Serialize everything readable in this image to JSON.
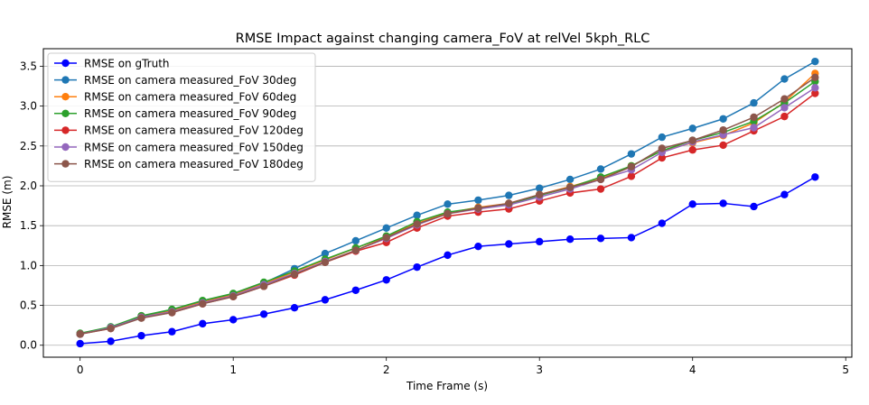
{
  "chart_data": {
    "type": "line",
    "title": "RMSE Impact against changing camera_FoV at relVel 5kph_RLC",
    "xlabel": "Time Frame (s)",
    "ylabel": "RMSE (m)",
    "xlim": [
      -0.24,
      5.04
    ],
    "ylim": [
      -0.15,
      3.72
    ],
    "x_ticks": [
      0,
      1,
      2,
      3,
      4,
      5
    ],
    "y_ticks": [
      0.0,
      0.5,
      1.0,
      1.5,
      2.0,
      2.5,
      3.0,
      3.5
    ],
    "x_tick_labels": [
      "0",
      "1",
      "2",
      "3",
      "4",
      "5"
    ],
    "y_tick_labels": [
      "0.0",
      "0.5",
      "1.0",
      "1.5",
      "2.0",
      "2.5",
      "3.0",
      "3.5"
    ],
    "grid": "horizontal",
    "legend_position": "top-left",
    "x": [
      0,
      0.2,
      0.4,
      0.6,
      0.8,
      1.0,
      1.2,
      1.4,
      1.6,
      1.8,
      2.0,
      2.2,
      2.4,
      2.6,
      2.8,
      3.0,
      3.2,
      3.4,
      3.6,
      3.8,
      4.0,
      4.2,
      4.4,
      4.6,
      4.8
    ],
    "series": [
      {
        "name": "RMSE on gTruth",
        "color": "#0000ff",
        "values": [
          0.02,
          0.05,
          0.12,
          0.17,
          0.27,
          0.32,
          0.39,
          0.47,
          0.57,
          0.69,
          0.82,
          0.98,
          1.13,
          1.24,
          1.27,
          1.3,
          1.33,
          1.34,
          1.35,
          1.53,
          1.77,
          1.78,
          1.74,
          1.89,
          2.11
        ]
      },
      {
        "name": "RMSE on camera measured_FoV 30deg",
        "color": "#1f77b4",
        "values": [
          0.14,
          0.23,
          0.36,
          0.44,
          0.55,
          0.64,
          0.78,
          0.96,
          1.15,
          1.31,
          1.47,
          1.63,
          1.77,
          1.82,
          1.88,
          1.97,
          2.08,
          2.21,
          2.4,
          2.61,
          2.72,
          2.84,
          3.04,
          3.34,
          3.56
        ]
      },
      {
        "name": "RMSE on camera measured_FoV 60deg",
        "color": "#ff7f0e",
        "values": [
          0.14,
          0.22,
          0.35,
          0.43,
          0.54,
          0.63,
          0.77,
          0.92,
          1.07,
          1.22,
          1.36,
          1.53,
          1.66,
          1.73,
          1.78,
          1.89,
          1.99,
          2.1,
          2.25,
          2.44,
          2.54,
          2.63,
          2.79,
          3.05,
          3.41
        ]
      },
      {
        "name": "RMSE on camera measured_FoV 90deg",
        "color": "#2ca02c",
        "values": [
          0.15,
          0.23,
          0.37,
          0.45,
          0.56,
          0.65,
          0.79,
          0.93,
          1.08,
          1.22,
          1.37,
          1.55,
          1.67,
          1.72,
          1.77,
          1.88,
          1.98,
          2.11,
          2.25,
          2.44,
          2.57,
          2.67,
          2.81,
          3.04,
          3.31
        ]
      },
      {
        "name": "RMSE on camera measured_FoV 120deg",
        "color": "#d62728",
        "values": [
          0.14,
          0.21,
          0.35,
          0.41,
          0.52,
          0.61,
          0.74,
          0.88,
          1.04,
          1.18,
          1.29,
          1.47,
          1.62,
          1.67,
          1.71,
          1.81,
          1.91,
          1.96,
          2.12,
          2.35,
          2.45,
          2.51,
          2.69,
          2.87,
          3.16
        ]
      },
      {
        "name": "RMSE on camera measured_FoV 150deg",
        "color": "#9467bd",
        "values": [
          0.14,
          0.22,
          0.35,
          0.42,
          0.53,
          0.62,
          0.76,
          0.9,
          1.05,
          1.19,
          1.34,
          1.51,
          1.65,
          1.71,
          1.76,
          1.86,
          1.96,
          2.08,
          2.2,
          2.42,
          2.55,
          2.64,
          2.73,
          2.98,
          3.23
        ]
      },
      {
        "name": "RMSE on camera measured_FoV 180deg",
        "color": "#8c564b",
        "values": [
          0.14,
          0.21,
          0.34,
          0.41,
          0.52,
          0.61,
          0.74,
          0.89,
          1.04,
          1.19,
          1.35,
          1.52,
          1.65,
          1.72,
          1.78,
          1.89,
          1.98,
          2.08,
          2.24,
          2.47,
          2.57,
          2.7,
          2.86,
          3.09,
          3.36
        ]
      }
    ]
  }
}
